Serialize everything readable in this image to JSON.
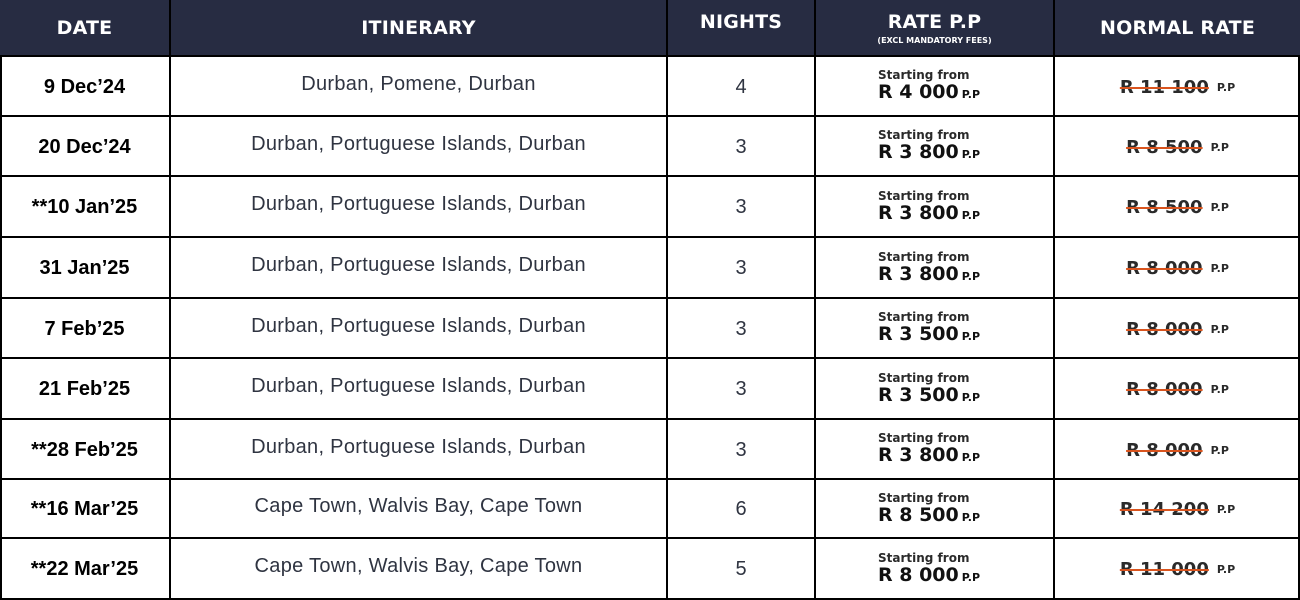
{
  "header": {
    "date": "DATE",
    "itinerary": "ITINERARY",
    "nights": "NIGHTS",
    "rate": "RATE P.P",
    "rate_sub": "(EXCL MANDATORY FEES)",
    "normal_rate": "NORMAL RATE"
  },
  "rows": [
    {
      "date": "9 Dec’24",
      "itinerary": "Durban, Pomene, Durban",
      "nights": "4",
      "from": "Starting from",
      "rate": "R 4 000",
      "rate_unit": "P.P",
      "normal": "R 11 100",
      "normal_unit": "P.P"
    },
    {
      "date": "20 Dec’24",
      "itinerary": "Durban, Portuguese Islands, Durban",
      "nights": "3",
      "from": "Starting from",
      "rate": "R 3 800",
      "rate_unit": "P.P",
      "normal": "R 8 500",
      "normal_unit": "P.P"
    },
    {
      "date": "**10 Jan’25",
      "itinerary": "Durban, Portuguese Islands, Durban",
      "nights": "3",
      "from": "Starting from",
      "rate": "R 3 800",
      "rate_unit": "P.P",
      "normal": "R 8 500",
      "normal_unit": "P.P"
    },
    {
      "date": "31 Jan’25",
      "itinerary": "Durban, Portuguese Islands, Durban",
      "nights": "3",
      "from": "Starting from",
      "rate": "R 3 800",
      "rate_unit": "P.P",
      "normal": "R 8 000",
      "normal_unit": "P.P"
    },
    {
      "date": "7 Feb’25",
      "itinerary": "Durban, Portuguese Islands, Durban",
      "nights": "3",
      "from": "Starting from",
      "rate": "R 3 500",
      "rate_unit": "P.P",
      "normal": "R 8 000",
      "normal_unit": "P.P"
    },
    {
      "date": "21 Feb’25",
      "itinerary": "Durban, Portuguese Islands, Durban",
      "nights": "3",
      "from": "Starting from",
      "rate": "R 3 500",
      "rate_unit": "P.P",
      "normal": "R 8 000",
      "normal_unit": "P.P"
    },
    {
      "date": "**28 Feb’25",
      "itinerary": "Durban, Portuguese Islands, Durban",
      "nights": "3",
      "from": "Starting from",
      "rate": "R 3 800",
      "rate_unit": "P.P",
      "normal": "R 8 000",
      "normal_unit": "P.P"
    },
    {
      "date": "**16 Mar’25",
      "itinerary": "Cape Town, Walvis Bay, Cape Town",
      "nights": "6",
      "from": "Starting from",
      "rate": "R 8 500",
      "rate_unit": "P.P",
      "normal": "R 14 200",
      "normal_unit": "P.P"
    },
    {
      "date": "**22 Mar’25",
      "itinerary": "Cape Town, Walvis Bay, Cape Town",
      "nights": "5",
      "from": "Starting from",
      "rate": "R 8 000",
      "rate_unit": "P.P",
      "normal": "R 11 000",
      "normal_unit": "P.P"
    }
  ]
}
